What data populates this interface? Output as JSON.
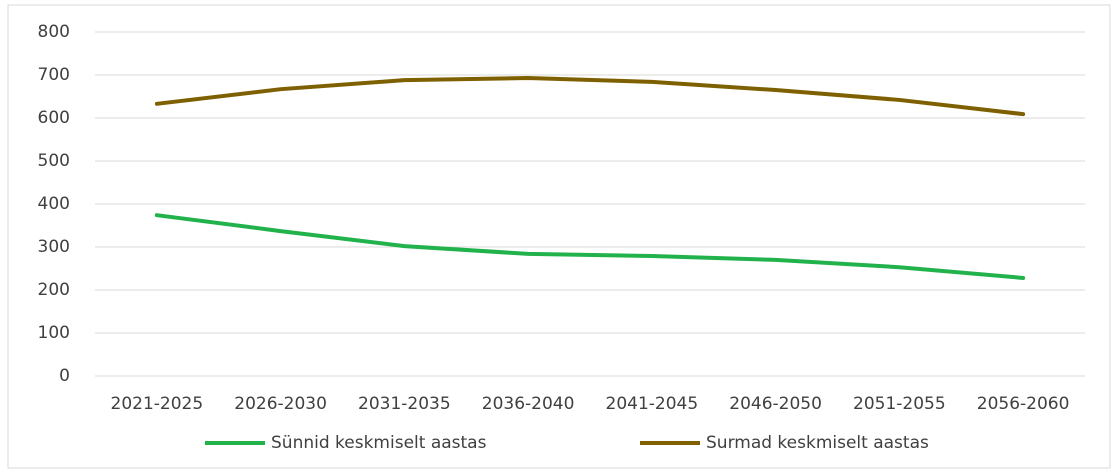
{
  "chart_data": {
    "type": "line",
    "categories": [
      "2021-2025",
      "2026-2030",
      "2031-2035",
      "2036-2040",
      "2041-2045",
      "2046-2050",
      "2051-2055",
      "2056-2060"
    ],
    "series": [
      {
        "name": "Sünnid keskmiselt aastas",
        "color": "#22b24c",
        "values": [
          374,
          337,
          302,
          284,
          279,
          270,
          253,
          228
        ]
      },
      {
        "name": "Surmad keskmiselt aastas",
        "color": "#7f6000",
        "values": [
          633,
          667,
          688,
          693,
          684,
          665,
          642,
          609
        ]
      }
    ],
    "ylim": [
      0,
      800
    ],
    "yticks": [
      0,
      100,
      200,
      300,
      400,
      500,
      600,
      700,
      800
    ],
    "grid": true,
    "legend": "bottom"
  }
}
